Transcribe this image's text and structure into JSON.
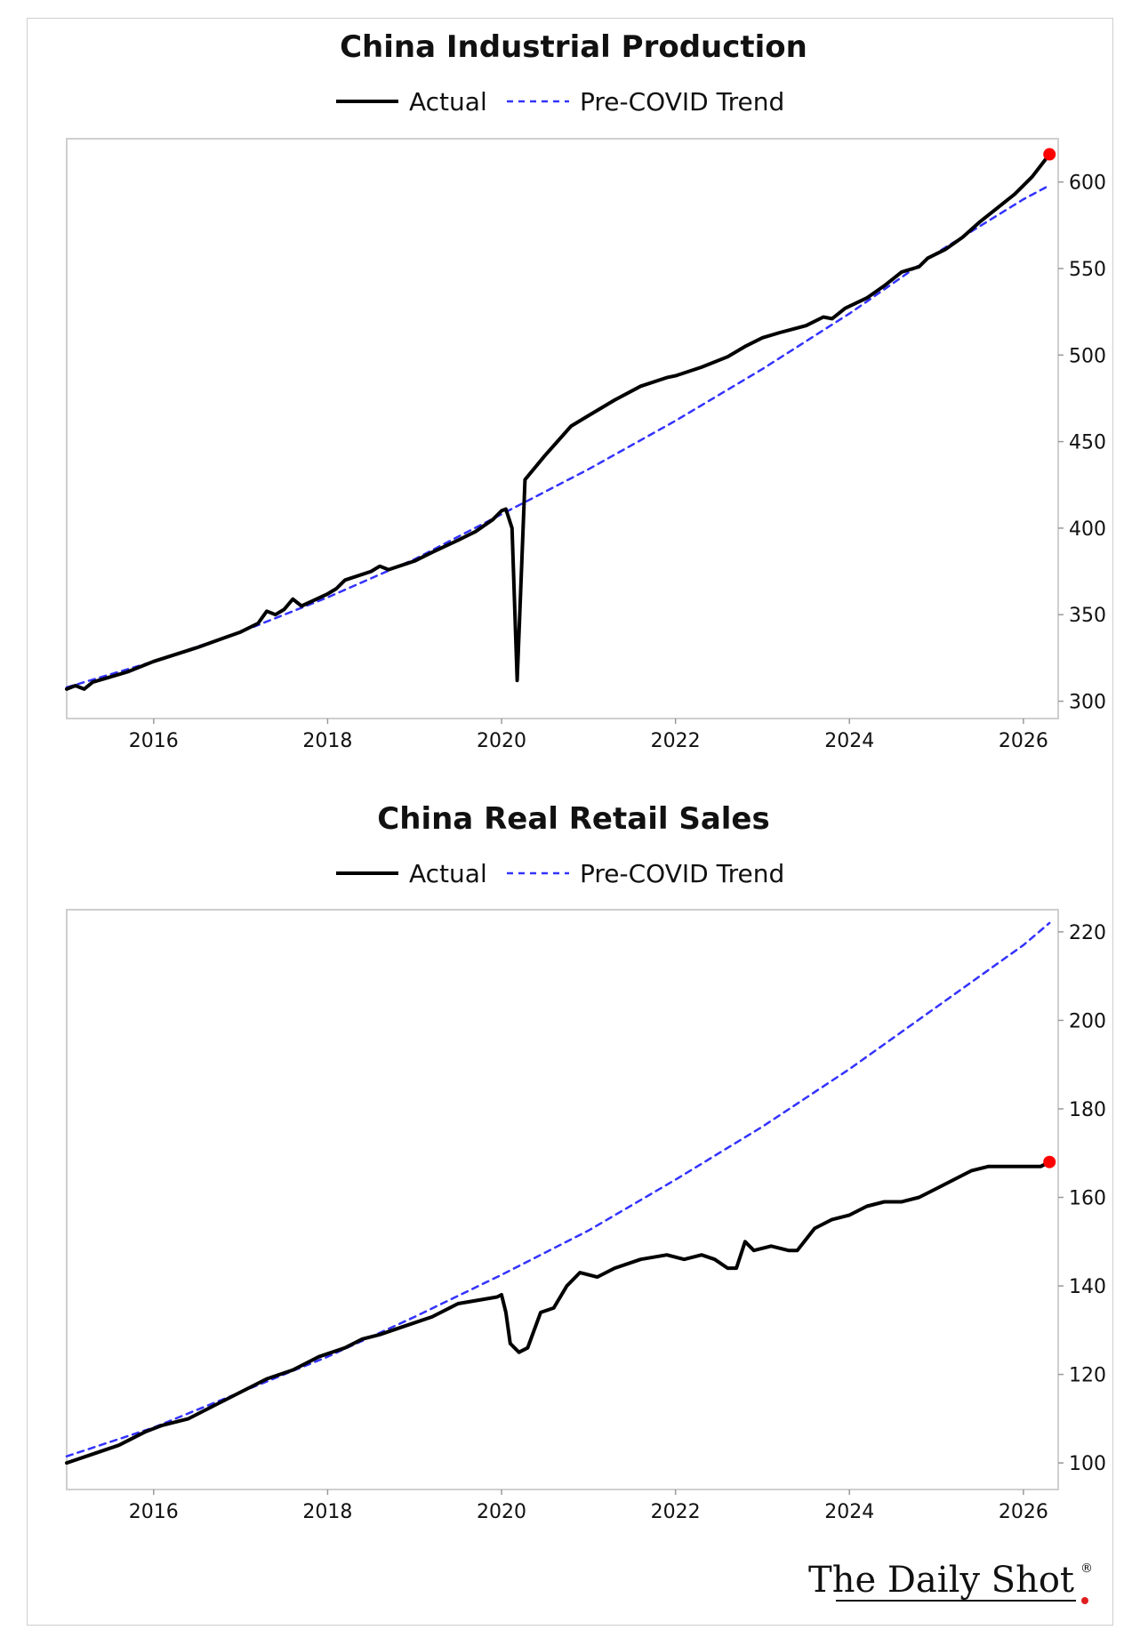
{
  "brand": {
    "name": "The Daily Shot",
    "mark": "®",
    "dot_color": "#e11d1d"
  },
  "chart_data": [
    {
      "type": "line",
      "title": "China Industrial Production",
      "legend": {
        "placement": "top-center",
        "entries": [
          "Actual",
          "Pre-COVID Trend"
        ]
      },
      "xlim": [
        2015.0,
        2026.4
      ],
      "ylim": [
        290,
        625
      ],
      "x_ticks": [
        2016,
        2018,
        2020,
        2022,
        2024,
        2026
      ],
      "y_ticks": [
        300,
        350,
        400,
        450,
        500,
        550,
        600
      ],
      "y_axis_side": "right",
      "grid": false,
      "series": [
        {
          "name": "Actual",
          "color": "#000000",
          "style": "solid",
          "end_marker_color": "#ff0000",
          "points": [
            [
              2015.0,
              307
            ],
            [
              2015.1,
              309
            ],
            [
              2015.2,
              307
            ],
            [
              2015.3,
              311
            ],
            [
              2015.5,
              314
            ],
            [
              2015.7,
              317
            ],
            [
              2016.0,
              323
            ],
            [
              2016.5,
              331
            ],
            [
              2017.0,
              340
            ],
            [
              2017.2,
              345
            ],
            [
              2017.3,
              352
            ],
            [
              2017.4,
              350
            ],
            [
              2017.5,
              353
            ],
            [
              2017.6,
              359
            ],
            [
              2017.7,
              355
            ],
            [
              2018.0,
              362
            ],
            [
              2018.1,
              365
            ],
            [
              2018.2,
              370
            ],
            [
              2018.5,
              375
            ],
            [
              2018.6,
              378
            ],
            [
              2018.7,
              376
            ],
            [
              2019.0,
              381
            ],
            [
              2019.2,
              386
            ],
            [
              2019.5,
              393
            ],
            [
              2019.7,
              398
            ],
            [
              2019.9,
              405
            ],
            [
              2020.0,
              410
            ],
            [
              2020.05,
              411
            ],
            [
              2020.12,
              400
            ],
            [
              2020.18,
              312
            ],
            [
              2020.27,
              428
            ],
            [
              2020.5,
              442
            ],
            [
              2020.8,
              459
            ],
            [
              2021.0,
              465
            ],
            [
              2021.3,
              474
            ],
            [
              2021.6,
              482
            ],
            [
              2021.9,
              487
            ],
            [
              2022.0,
              488
            ],
            [
              2022.3,
              493
            ],
            [
              2022.6,
              499
            ],
            [
              2022.8,
              505
            ],
            [
              2023.0,
              510
            ],
            [
              2023.2,
              513
            ],
            [
              2023.5,
              517
            ],
            [
              2023.7,
              522
            ],
            [
              2023.8,
              521
            ],
            [
              2023.95,
              527
            ],
            [
              2024.2,
              533
            ],
            [
              2024.4,
              540
            ],
            [
              2024.6,
              548
            ],
            [
              2024.8,
              551
            ],
            [
              2024.9,
              556
            ],
            [
              2025.1,
              561
            ],
            [
              2025.3,
              568
            ],
            [
              2025.5,
              577
            ],
            [
              2025.7,
              585
            ],
            [
              2025.9,
              593
            ],
            [
              2026.1,
              603
            ],
            [
              2026.3,
              616
            ]
          ]
        },
        {
          "name": "Pre-COVID Trend",
          "color": "#3333ff",
          "style": "dashed",
          "points": [
            [
              2015.0,
              308
            ],
            [
              2016.0,
              323
            ],
            [
              2017.0,
              340
            ],
            [
              2018.0,
              360
            ],
            [
              2019.0,
              382
            ],
            [
              2020.0,
              408
            ],
            [
              2021.0,
              434
            ],
            [
              2022.0,
              462
            ],
            [
              2023.0,
              492
            ],
            [
              2024.0,
              524
            ],
            [
              2025.0,
              559
            ],
            [
              2026.0,
              590
            ],
            [
              2026.3,
              598
            ]
          ]
        }
      ]
    },
    {
      "type": "line",
      "title": "China Real Retail Sales",
      "legend": {
        "placement": "top-center",
        "entries": [
          "Actual",
          "Pre-COVID Trend"
        ]
      },
      "xlim": [
        2015.0,
        2026.4
      ],
      "ylim": [
        94,
        225
      ],
      "x_ticks": [
        2016,
        2018,
        2020,
        2022,
        2024,
        2026
      ],
      "y_ticks": [
        100,
        120,
        140,
        160,
        180,
        200,
        220
      ],
      "y_axis_side": "right",
      "grid": false,
      "series": [
        {
          "name": "Actual",
          "color": "#000000",
          "style": "solid",
          "end_marker_color": "#ff0000",
          "points": [
            [
              2015.0,
              100
            ],
            [
              2015.3,
              102
            ],
            [
              2015.6,
              104
            ],
            [
              2015.9,
              107
            ],
            [
              2016.1,
              108.5
            ],
            [
              2016.4,
              110
            ],
            [
              2016.7,
              113
            ],
            [
              2017.0,
              116
            ],
            [
              2017.3,
              119
            ],
            [
              2017.6,
              121
            ],
            [
              2017.9,
              124
            ],
            [
              2018.2,
              126
            ],
            [
              2018.4,
              128
            ],
            [
              2018.6,
              129
            ],
            [
              2018.9,
              131
            ],
            [
              2019.2,
              133
            ],
            [
              2019.5,
              136
            ],
            [
              2019.8,
              137
            ],
            [
              2019.95,
              137.5
            ],
            [
              2020.0,
              138
            ],
            [
              2020.05,
              134
            ],
            [
              2020.1,
              127
            ],
            [
              2020.2,
              125
            ],
            [
              2020.3,
              126
            ],
            [
              2020.45,
              134
            ],
            [
              2020.6,
              135
            ],
            [
              2020.75,
              140
            ],
            [
              2020.9,
              143
            ],
            [
              2021.1,
              142
            ],
            [
              2021.3,
              144
            ],
            [
              2021.6,
              146
            ],
            [
              2021.9,
              147
            ],
            [
              2022.1,
              146
            ],
            [
              2022.3,
              147
            ],
            [
              2022.45,
              146
            ],
            [
              2022.6,
              144
            ],
            [
              2022.7,
              144
            ],
            [
              2022.8,
              150
            ],
            [
              2022.9,
              148
            ],
            [
              2023.1,
              149
            ],
            [
              2023.3,
              148
            ],
            [
              2023.4,
              148
            ],
            [
              2023.6,
              153
            ],
            [
              2023.8,
              155
            ],
            [
              2024.0,
              156
            ],
            [
              2024.2,
              158
            ],
            [
              2024.4,
              159
            ],
            [
              2024.6,
              159
            ],
            [
              2024.8,
              160
            ],
            [
              2025.0,
              162
            ],
            [
              2025.2,
              164
            ],
            [
              2025.4,
              166
            ],
            [
              2025.6,
              167
            ],
            [
              2025.8,
              167
            ],
            [
              2026.0,
              167
            ],
            [
              2026.2,
              167
            ],
            [
              2026.3,
              168
            ]
          ]
        },
        {
          "name": "Pre-COVID Trend",
          "color": "#3333ff",
          "style": "dashed",
          "points": [
            [
              2015.0,
              101.5
            ],
            [
              2016.0,
              108
            ],
            [
              2017.0,
              116
            ],
            [
              2018.0,
              124
            ],
            [
              2019.0,
              133
            ],
            [
              2020.0,
              142.5
            ],
            [
              2021.0,
              152.5
            ],
            [
              2022.0,
              164
            ],
            [
              2023.0,
              176
            ],
            [
              2024.0,
              189
            ],
            [
              2025.0,
              203
            ],
            [
              2026.0,
              217
            ],
            [
              2026.3,
              222
            ]
          ]
        }
      ]
    }
  ]
}
